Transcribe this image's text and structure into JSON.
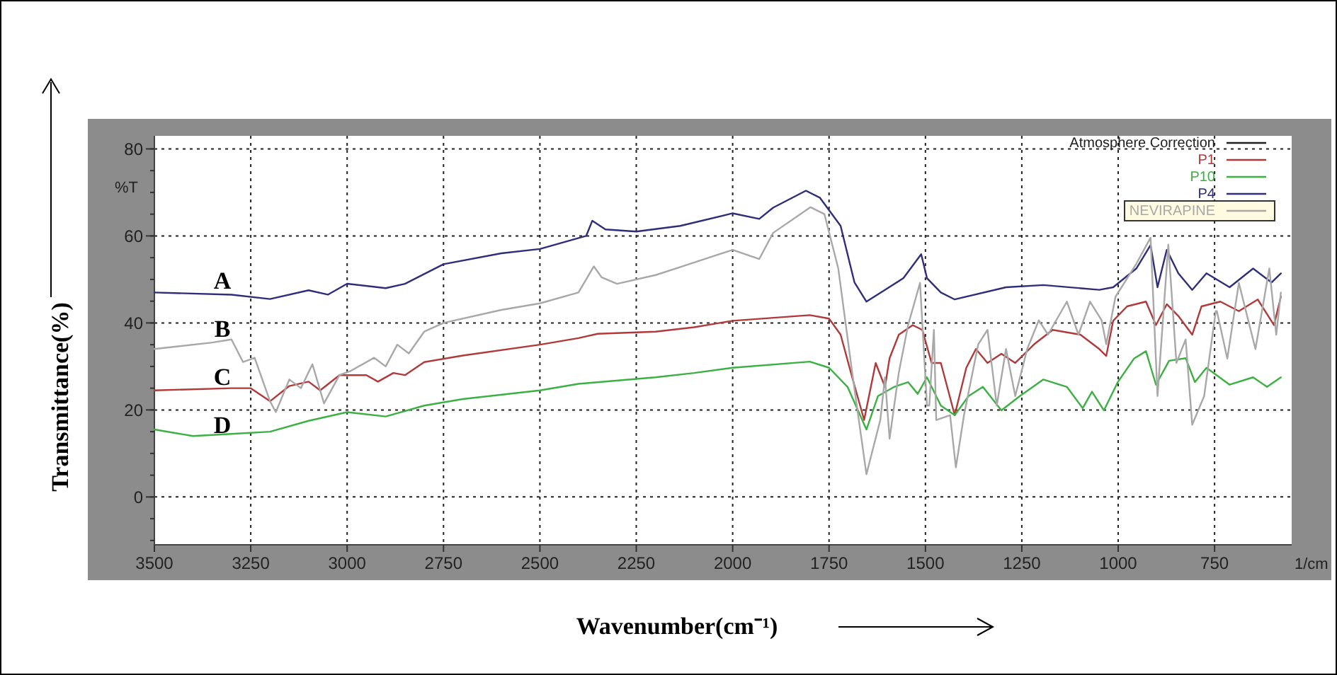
{
  "chart_data": {
    "type": "line",
    "xlabel": "Wavenumber(cm⁻¹)",
    "ylabel": "Transmittance(%)",
    "annotations": [
      "%T",
      "1/cm",
      "A",
      "B",
      "C",
      "D"
    ],
    "xlim": [
      3500,
      550
    ],
    "ylim": [
      -11,
      83
    ],
    "xticks": [
      3500,
      3250,
      3000,
      2750,
      2500,
      2250,
      2000,
      1750,
      1500,
      1250,
      1000,
      750
    ],
    "yticks": [
      0,
      20,
      40,
      60,
      80
    ],
    "grid": true,
    "legend": "top right",
    "line_style": "solid",
    "marker": "none",
    "series": [
      {
        "name": "Atmosphere Correction",
        "color": "#202020"
      },
      {
        "name": "P1",
        "color": "#b03a3a",
        "x": [
          3500,
          3300,
          3250,
          3200,
          3150,
          3100,
          3070,
          3020,
          2950,
          2920,
          2880,
          2850,
          2800,
          2700,
          2500,
          2400,
          2350,
          2200,
          2100,
          2000,
          1800,
          1750,
          1720,
          1690,
          1659,
          1629,
          1605,
          1593,
          1569,
          1533,
          1508,
          1484,
          1460,
          1424,
          1394,
          1369,
          1339,
          1303,
          1267,
          1218,
          1170,
          1098,
          1049,
          1031,
          1013,
          977,
          928,
          902,
          874,
          844,
          808,
          784,
          735,
          687,
          638,
          596,
          578
        ],
        "values": [
          24.5,
          25,
          25,
          22,
          25.5,
          26.5,
          24.5,
          28,
          28,
          26.5,
          28.5,
          28,
          31,
          32.5,
          35,
          36.5,
          37.5,
          38,
          39,
          40.5,
          41.8,
          41,
          37.3,
          27.5,
          17.7,
          30.8,
          25.3,
          31.9,
          37.3,
          39.5,
          38.4,
          30.8,
          30.8,
          18.8,
          29.7,
          34,
          30.8,
          32.9,
          30.8,
          35.1,
          38.4,
          37.3,
          34,
          32.4,
          40.5,
          43.8,
          44.9,
          39.5,
          44.3,
          41.6,
          37.3,
          43.8,
          44.9,
          42.7,
          45.4,
          39.5,
          46
        ]
      },
      {
        "name": "P10",
        "color": "#3cb043",
        "x": [
          3500,
          3400,
          3300,
          3200,
          3100,
          3000,
          2900,
          2800,
          2700,
          2500,
          2400,
          2200,
          2100,
          2000,
          1800,
          1750,
          1702,
          1653,
          1623,
          1581,
          1545,
          1520,
          1496,
          1460,
          1424,
          1388,
          1351,
          1303,
          1255,
          1194,
          1133,
          1092,
          1068,
          1037,
          1001,
          959,
          928,
          902,
          868,
          825,
          801,
          771,
          711,
          650,
          614,
          578
        ],
        "values": [
          15.5,
          14,
          14.5,
          15,
          17.5,
          19.5,
          18.5,
          21,
          22.5,
          24.5,
          26,
          27.5,
          28.5,
          29.7,
          31.1,
          29.7,
          25.3,
          15.5,
          23.2,
          25.3,
          26.4,
          23.7,
          27.5,
          21,
          18.8,
          23.2,
          25.3,
          19.9,
          23.2,
          27,
          25.3,
          20.4,
          24.2,
          19.9,
          26.4,
          31.8,
          33.5,
          25.8,
          31.3,
          31.9,
          26.4,
          29.7,
          25.8,
          27.5,
          25.3,
          27.5
        ]
      },
      {
        "name": "P4",
        "color": "#2e2e7a",
        "x": [
          3500,
          3300,
          3200,
          3100,
          3050,
          3000,
          2900,
          2850,
          2750,
          2600,
          2500,
          2380,
          2364,
          2330,
          2250,
          2136,
          2000,
          1931,
          1895,
          1810,
          1774,
          1720,
          1684,
          1653,
          1605,
          1557,
          1511,
          1496,
          1460,
          1424,
          1291,
          1194,
          1049,
          1013,
          953,
          916,
          898,
          874,
          844,
          808,
          771,
          711,
          650,
          602,
          578
        ],
        "values": [
          47,
          46.5,
          45.5,
          47.5,
          46.5,
          49,
          48,
          49,
          53.5,
          56,
          57,
          60,
          63.5,
          61.5,
          61,
          62.3,
          65.2,
          63.9,
          66.5,
          70.4,
          68.8,
          62.3,
          49.3,
          44.9,
          47.6,
          50.3,
          55.8,
          50.3,
          47,
          45.4,
          48.2,
          48.7,
          47.6,
          48.2,
          52.5,
          57.9,
          48.2,
          56.8,
          51.4,
          47.6,
          51.4,
          48.2,
          52.5,
          49.3,
          51.4
        ]
      },
      {
        "name": "NEVIRAPINE",
        "color": "#a8a8a8",
        "x": [
          3500,
          3350,
          3300,
          3270,
          3240,
          3200,
          3185,
          3150,
          3120,
          3090,
          3060,
          3020,
          2990,
          2930,
          2900,
          2870,
          2840,
          2800,
          2750,
          2600,
          2500,
          2400,
          2360,
          2340,
          2300,
          2200,
          2130,
          2000,
          1931,
          1895,
          1798,
          1762,
          1726,
          1690,
          1653,
          1617,
          1605,
          1593,
          1569,
          1545,
          1514,
          1496,
          1490,
          1478,
          1472,
          1436,
          1421,
          1400,
          1363,
          1339,
          1315,
          1291,
          1267,
          1236,
          1206,
          1182,
          1133,
          1103,
          1073,
          1043,
          1031,
          1007,
          953,
          916,
          898,
          870,
          849,
          825,
          808,
          777,
          747,
          744,
          717,
          687,
          644,
          608,
          590,
          578
        ],
        "values": [
          34,
          35.5,
          36.2,
          31,
          32,
          22,
          19.5,
          27,
          25,
          30.5,
          21.5,
          28,
          29,
          32,
          30,
          35,
          33,
          38,
          40,
          43,
          44.5,
          47,
          53,
          50.5,
          49,
          51,
          53,
          56.8,
          54.7,
          60.7,
          66.6,
          65,
          52.5,
          28.6,
          5.2,
          17.7,
          27.5,
          13.4,
          28.6,
          39.5,
          49.2,
          21,
          21,
          38.4,
          17.7,
          18.8,
          6.8,
          18.8,
          35.1,
          38.4,
          21,
          34,
          23.2,
          34,
          40.6,
          37.3,
          44.9,
          37.3,
          44.9,
          40.6,
          35.1,
          46,
          53.6,
          59.6,
          23.2,
          58,
          30.8,
          36.2,
          16.6,
          23.2,
          42.7,
          42.7,
          31.8,
          49.2,
          34,
          52.5,
          37.3,
          47
        ]
      }
    ]
  }
}
